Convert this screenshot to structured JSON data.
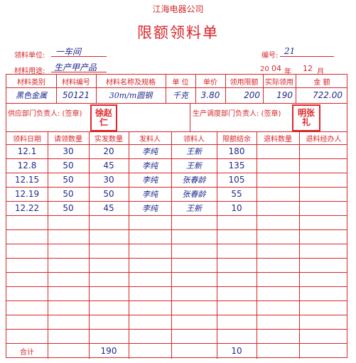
{
  "company": "江海电器公司",
  "title": "限额领料单",
  "header": {
    "unit_label": "领料单位:",
    "unit_value": "一车间",
    "use_label": "材料用途:",
    "use_value": "生产甲产品",
    "number_label": "编号:",
    "number_value": "21",
    "year_prefix": "20",
    "year_value": "04",
    "year_label": "年",
    "month_value": "12",
    "month_label": "月"
  },
  "material": {
    "headers": [
      "材料类别",
      "材料编号",
      "材料名称及规格",
      "单 位",
      "单价",
      "领用限额",
      "实际领用",
      "金 额"
    ],
    "values": [
      "黑色金属",
      "50121",
      "30m/m圆钢",
      "千克",
      "3.80",
      "200",
      "190",
      "722.00"
    ]
  },
  "signatures": {
    "supply_label": "供应部门负责人: (签章)",
    "supply_stamp": "徐赵仁",
    "dispatch_label": "生产调度部门负责人: (签章)",
    "dispatch_stamp": "明张礼"
  },
  "issue_table": {
    "headers": [
      "领料日期",
      "请领数量",
      "实发数量",
      "发料人",
      "领料人",
      "限额结余",
      "退料数量",
      "退料经办人"
    ],
    "rows": [
      {
        "date": "12.1",
        "requested": "30",
        "issued": "20",
        "issuer": "李纯",
        "receiver": "王新",
        "balance": "180"
      },
      {
        "date": "12.8",
        "requested": "50",
        "issued": "45",
        "issuer": "李纯",
        "receiver": "王新",
        "balance": "135"
      },
      {
        "date": "12.15",
        "requested": "50",
        "issued": "30",
        "issuer": "李纯",
        "receiver": "张春龄",
        "balance": "105"
      },
      {
        "date": "12.19",
        "requested": "50",
        "issued": "50",
        "issuer": "李纯",
        "receiver": "张春龄",
        "balance": "55"
      },
      {
        "date": "12.22",
        "requested": "50",
        "issued": "45",
        "issuer": "李纯",
        "receiver": "王新",
        "balance": "10"
      }
    ],
    "total_label": "合计",
    "total_issued": "190",
    "total_balance": "10"
  },
  "colors": {
    "form_red": "#d9262a",
    "ink_blue": "#1f2a8c",
    "stamp_red": "#e0262b"
  }
}
